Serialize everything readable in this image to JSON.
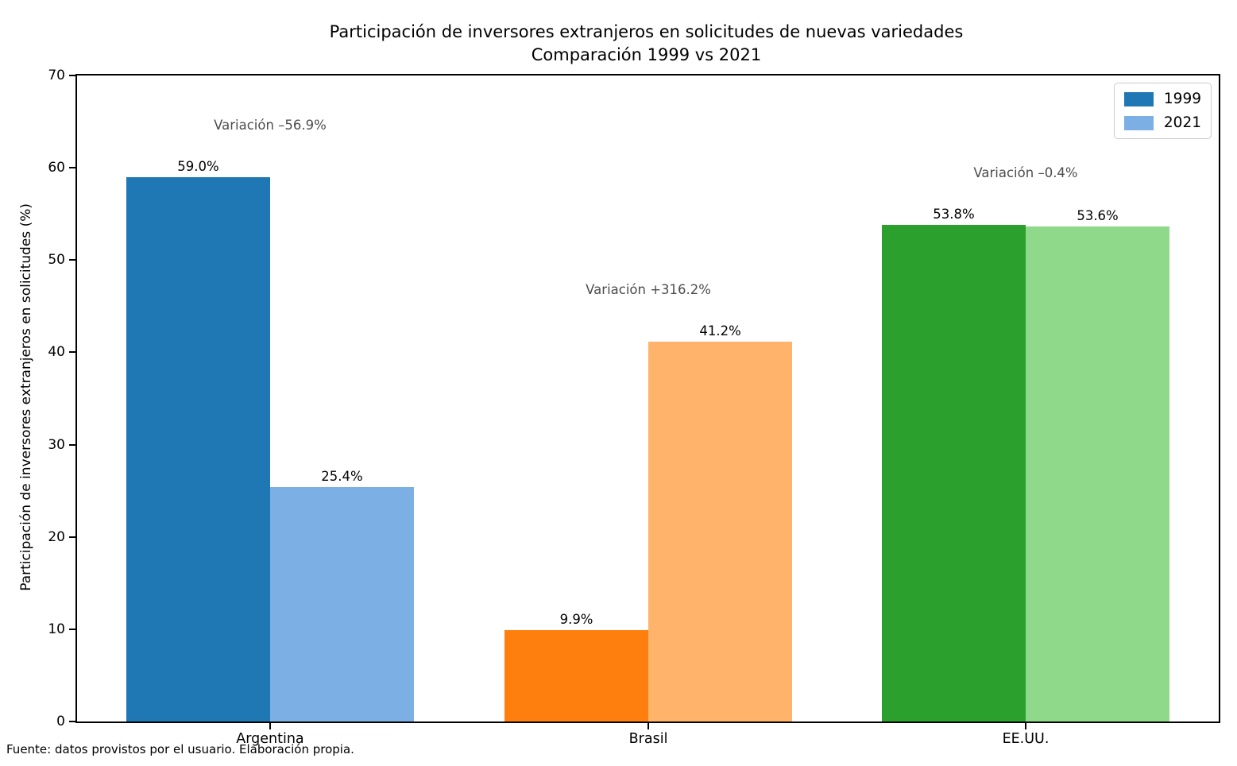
{
  "title": {
    "line1": "Participación de inversores extranjeros en solicitudes de nuevas variedades",
    "line2": "Comparación 1999 vs 2021"
  },
  "y_axis_label": "Participación de inversores extranjeros en solicitudes (%)",
  "footer": "Fuente: datos provistos por el usuario. Elaboración propia.",
  "legend": {
    "position": "upper right",
    "entries": [
      {
        "label": "1999",
        "color": "#1f77b4"
      },
      {
        "label": "2021",
        "color": "#7cafe3"
      }
    ]
  },
  "chart_data": {
    "type": "bar",
    "categories": [
      "Argentina",
      "Brasil",
      "EE.UU."
    ],
    "series": [
      {
        "name": "1999",
        "values": [
          59.0,
          9.9,
          53.8
        ]
      },
      {
        "name": "2021",
        "values": [
          25.4,
          41.2,
          53.6
        ]
      }
    ],
    "bar_value_labels": [
      [
        "59.0%",
        "25.4%"
      ],
      [
        "9.9%",
        "41.2%"
      ],
      [
        "53.8%",
        "53.6%"
      ]
    ],
    "variation_annotations": [
      "Variación –56.9%",
      "Variación +316.2%",
      "Variación –0.4%"
    ],
    "bar_colors_1999": [
      "#1f77b4",
      "#ff7f0e",
      "#2ca02c"
    ],
    "bar_colors_2021": [
      "#7cafe3",
      "#ffb36b",
      "#8fd98a"
    ],
    "ylabel": "Participación de inversores extranjeros en solicitudes (%)",
    "ylim": [
      0,
      70
    ],
    "yticks": [
      0,
      10,
      20,
      30,
      40,
      50,
      60,
      70
    ],
    "grid": false,
    "annotation_color": "#4d4d4d"
  }
}
